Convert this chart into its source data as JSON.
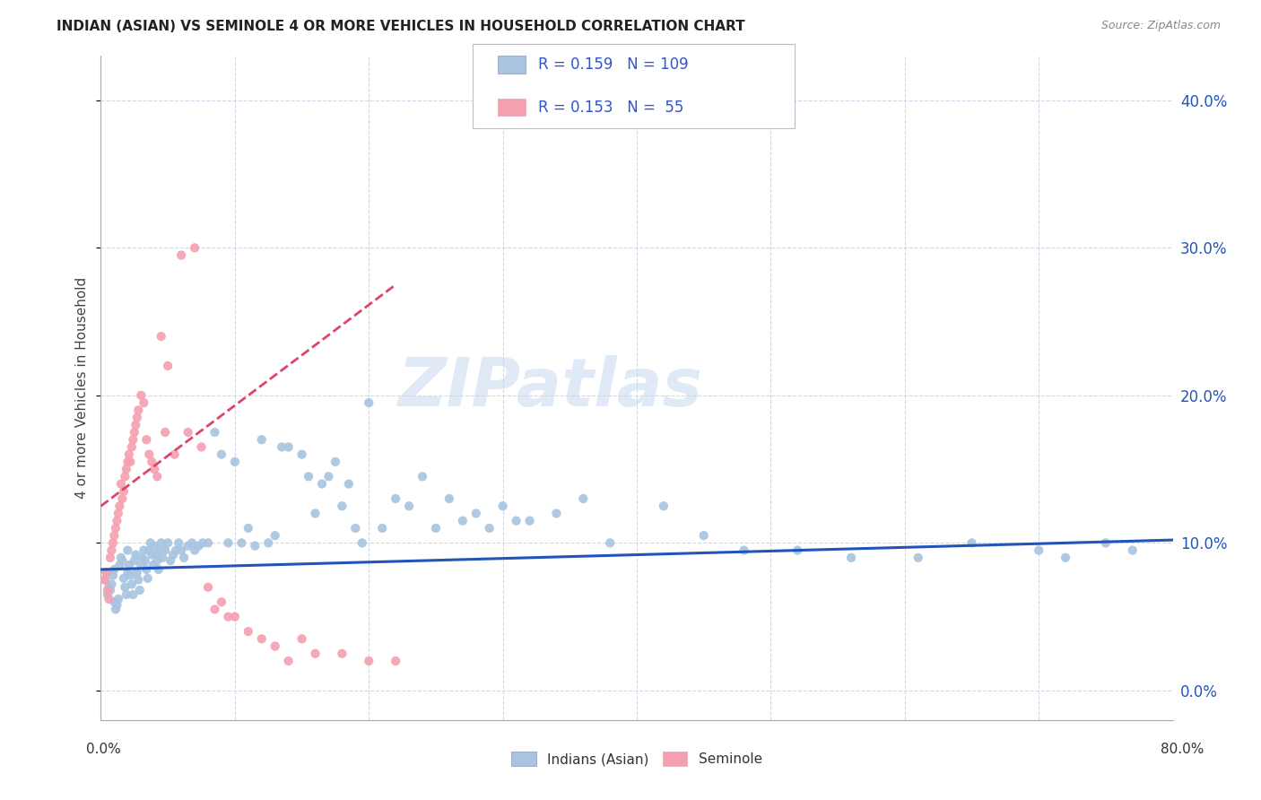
{
  "title": "INDIAN (ASIAN) VS SEMINOLE 4 OR MORE VEHICLES IN HOUSEHOLD CORRELATION CHART",
  "source": "Source: ZipAtlas.com",
  "ylabel": "4 or more Vehicles in Household",
  "yticks": [
    0.0,
    0.1,
    0.2,
    0.3,
    0.4
  ],
  "ytick_labels": [
    "0.0%",
    "10.0%",
    "20.0%",
    "30.0%",
    "40.0%"
  ],
  "xlim": [
    0.0,
    0.8
  ],
  "ylim": [
    -0.02,
    0.43
  ],
  "legend_blue_r": "R = 0.159",
  "legend_blue_n": "N = 109",
  "legend_pink_r": "R = 0.153",
  "legend_pink_n": "N =  55",
  "blue_color": "#a8c4e0",
  "pink_color": "#f4a0b0",
  "blue_line_color": "#2255bb",
  "pink_line_color": "#dd4466",
  "r_n_color": "#3355cc",
  "watermark": "ZIPatlas",
  "watermark_color": "#c8d8f0",
  "blue_x": [
    0.003,
    0.004,
    0.005,
    0.006,
    0.007,
    0.008,
    0.009,
    0.01,
    0.01,
    0.011,
    0.012,
    0.013,
    0.014,
    0.015,
    0.016,
    0.017,
    0.018,
    0.019,
    0.02,
    0.02,
    0.021,
    0.022,
    0.023,
    0.024,
    0.025,
    0.026,
    0.027,
    0.028,
    0.029,
    0.03,
    0.031,
    0.032,
    0.033,
    0.034,
    0.035,
    0.036,
    0.037,
    0.038,
    0.039,
    0.04,
    0.041,
    0.042,
    0.043,
    0.044,
    0.045,
    0.046,
    0.048,
    0.05,
    0.052,
    0.054,
    0.056,
    0.058,
    0.06,
    0.062,
    0.065,
    0.068,
    0.07,
    0.073,
    0.076,
    0.08,
    0.085,
    0.09,
    0.095,
    0.1,
    0.105,
    0.11,
    0.115,
    0.12,
    0.125,
    0.13,
    0.135,
    0.14,
    0.15,
    0.155,
    0.16,
    0.165,
    0.17,
    0.175,
    0.18,
    0.185,
    0.19,
    0.195,
    0.2,
    0.21,
    0.22,
    0.23,
    0.24,
    0.25,
    0.26,
    0.27,
    0.28,
    0.29,
    0.3,
    0.31,
    0.32,
    0.34,
    0.36,
    0.38,
    0.42,
    0.45,
    0.48,
    0.52,
    0.56,
    0.61,
    0.65,
    0.7,
    0.72,
    0.75,
    0.77
  ],
  "blue_y": [
    0.075,
    0.08,
    0.065,
    0.07,
    0.068,
    0.072,
    0.078,
    0.082,
    0.06,
    0.055,
    0.058,
    0.062,
    0.085,
    0.09,
    0.088,
    0.076,
    0.07,
    0.065,
    0.08,
    0.095,
    0.085,
    0.078,
    0.072,
    0.065,
    0.088,
    0.092,
    0.08,
    0.075,
    0.068,
    0.085,
    0.09,
    0.095,
    0.088,
    0.082,
    0.076,
    0.095,
    0.1,
    0.092,
    0.085,
    0.098,
    0.092,
    0.088,
    0.082,
    0.095,
    0.1,
    0.09,
    0.095,
    0.1,
    0.088,
    0.092,
    0.095,
    0.1,
    0.095,
    0.09,
    0.098,
    0.1,
    0.095,
    0.098,
    0.1,
    0.1,
    0.175,
    0.16,
    0.1,
    0.155,
    0.1,
    0.11,
    0.098,
    0.17,
    0.1,
    0.105,
    0.165,
    0.165,
    0.16,
    0.145,
    0.12,
    0.14,
    0.145,
    0.155,
    0.125,
    0.14,
    0.11,
    0.1,
    0.195,
    0.11,
    0.13,
    0.125,
    0.145,
    0.11,
    0.13,
    0.115,
    0.12,
    0.11,
    0.125,
    0.115,
    0.115,
    0.12,
    0.13,
    0.1,
    0.125,
    0.105,
    0.095,
    0.095,
    0.09,
    0.09,
    0.1,
    0.095,
    0.09,
    0.1,
    0.095
  ],
  "pink_x": [
    0.003,
    0.004,
    0.005,
    0.006,
    0.007,
    0.008,
    0.009,
    0.01,
    0.011,
    0.012,
    0.013,
    0.014,
    0.015,
    0.016,
    0.017,
    0.018,
    0.019,
    0.02,
    0.021,
    0.022,
    0.023,
    0.024,
    0.025,
    0.026,
    0.027,
    0.028,
    0.03,
    0.032,
    0.034,
    0.036,
    0.038,
    0.04,
    0.042,
    0.045,
    0.048,
    0.05,
    0.055,
    0.06,
    0.065,
    0.07,
    0.075,
    0.08,
    0.085,
    0.09,
    0.095,
    0.1,
    0.11,
    0.12,
    0.13,
    0.14,
    0.15,
    0.16,
    0.18,
    0.2,
    0.22
  ],
  "pink_y": [
    0.075,
    0.08,
    0.068,
    0.062,
    0.09,
    0.095,
    0.1,
    0.105,
    0.11,
    0.115,
    0.12,
    0.125,
    0.14,
    0.13,
    0.135,
    0.145,
    0.15,
    0.155,
    0.16,
    0.155,
    0.165,
    0.17,
    0.175,
    0.18,
    0.185,
    0.19,
    0.2,
    0.195,
    0.17,
    0.16,
    0.155,
    0.15,
    0.145,
    0.24,
    0.175,
    0.22,
    0.16,
    0.295,
    0.175,
    0.3,
    0.165,
    0.07,
    0.055,
    0.06,
    0.05,
    0.05,
    0.04,
    0.035,
    0.03,
    0.02,
    0.035,
    0.025,
    0.025,
    0.02,
    0.02
  ],
  "blue_trend_x": [
    0.0,
    0.8
  ],
  "blue_trend_y": [
    0.082,
    0.102
  ],
  "pink_trend_x": [
    0.0,
    0.22
  ],
  "pink_trend_y": [
    0.125,
    0.275
  ]
}
